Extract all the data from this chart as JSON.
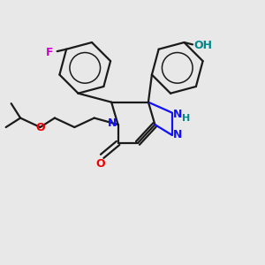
{
  "background_color": "#e8e8e8",
  "bond_color": "#1a1a1a",
  "N_color": "#1010ff",
  "O_color": "#ee0000",
  "F_color": "#cc00cc",
  "OH_color": "#008888",
  "figsize": [
    3.0,
    3.0
  ],
  "dpi": 100,
  "xlim": [
    0,
    10
  ],
  "ylim": [
    0,
    10
  ]
}
